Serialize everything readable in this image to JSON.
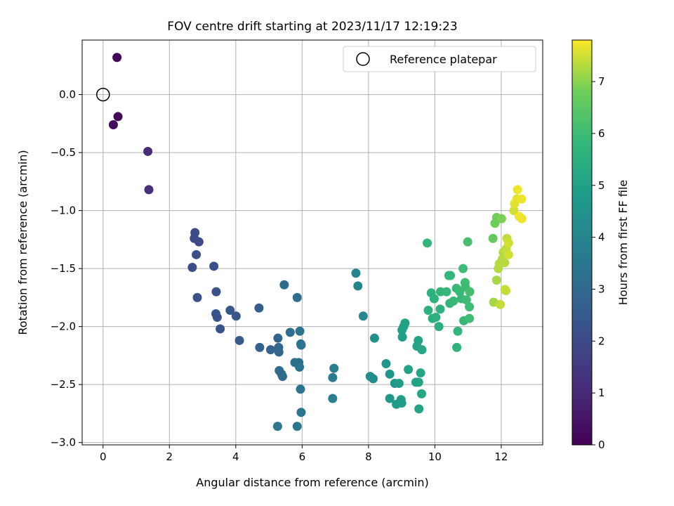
{
  "chart_data": {
    "type": "scatter",
    "title": "FOV centre drift starting at 2023/11/17 12:19:23",
    "xlabel": "Angular distance from reference (arcmin)",
    "ylabel": "Rotation from reference (arcmin)",
    "xlim": [
      -0.63,
      13.25
    ],
    "ylim": [
      -3.02,
      0.47
    ],
    "xticks": [
      0,
      2,
      4,
      6,
      8,
      10,
      12
    ],
    "xtick_labels": [
      "0",
      "2",
      "4",
      "6",
      "8",
      "10",
      "12"
    ],
    "yticks": [
      0.0,
      -0.5,
      -1.0,
      -1.5,
      -2.0,
      -2.5,
      -3.0
    ],
    "ytick_labels": [
      "0.0",
      "−0.5",
      "−1.0",
      "−1.5",
      "−2.0",
      "−2.5",
      "−3.0"
    ],
    "grid": true,
    "legend": {
      "position": "top-right",
      "entries": [
        "Reference platepar"
      ]
    },
    "reference_point": {
      "x": 0,
      "y": 0
    },
    "colorbar": {
      "label": "Hours from first FF file",
      "colormap": "viridis",
      "range": [
        0,
        7.8
      ],
      "ticks": [
        0,
        1,
        2,
        3,
        4,
        5,
        6,
        7
      ],
      "tick_labels": [
        "0",
        "1",
        "2",
        "3",
        "4",
        "5",
        "6",
        "7"
      ]
    },
    "points": [
      {
        "x": 0.42,
        "y": 0.32,
        "h": 0.1
      },
      {
        "x": 0.45,
        "y": -0.19,
        "h": 0.2
      },
      {
        "x": 0.31,
        "y": -0.26,
        "h": 0.3
      },
      {
        "x": 1.35,
        "y": -0.49,
        "h": 1.1
      },
      {
        "x": 1.38,
        "y": -0.82,
        "h": 1.2
      },
      {
        "x": 2.77,
        "y": -1.19,
        "h": 2.0
      },
      {
        "x": 2.75,
        "y": -1.24,
        "h": 2.0
      },
      {
        "x": 2.89,
        "y": -1.27,
        "h": 2.0
      },
      {
        "x": 2.81,
        "y": -1.38,
        "h": 2.1
      },
      {
        "x": 2.69,
        "y": -1.49,
        "h": 2.1
      },
      {
        "x": 3.34,
        "y": -1.48,
        "h": 2.1
      },
      {
        "x": 2.84,
        "y": -1.75,
        "h": 2.2
      },
      {
        "x": 3.41,
        "y": -1.7,
        "h": 2.2
      },
      {
        "x": 3.4,
        "y": -1.89,
        "h": 2.3
      },
      {
        "x": 3.44,
        "y": -1.92,
        "h": 2.3
      },
      {
        "x": 3.53,
        "y": -2.02,
        "h": 2.3
      },
      {
        "x": 3.83,
        "y": -1.86,
        "h": 2.4
      },
      {
        "x": 4.01,
        "y": -1.91,
        "h": 2.4
      },
      {
        "x": 4.11,
        "y": -2.12,
        "h": 2.5
      },
      {
        "x": 4.7,
        "y": -1.84,
        "h": 2.6
      },
      {
        "x": 4.72,
        "y": -2.18,
        "h": 2.7
      },
      {
        "x": 5.05,
        "y": -2.2,
        "h": 2.8
      },
      {
        "x": 5.27,
        "y": -2.1,
        "h": 2.8
      },
      {
        "x": 5.29,
        "y": -2.18,
        "h": 2.9
      },
      {
        "x": 5.3,
        "y": -2.22,
        "h": 2.9
      },
      {
        "x": 5.31,
        "y": -2.38,
        "h": 3.0
      },
      {
        "x": 5.38,
        "y": -2.41,
        "h": 3.0
      },
      {
        "x": 5.41,
        "y": -2.43,
        "h": 3.0
      },
      {
        "x": 5.46,
        "y": -1.64,
        "h": 3.1
      },
      {
        "x": 5.64,
        "y": -2.05,
        "h": 3.1
      },
      {
        "x": 5.78,
        "y": -2.31,
        "h": 3.2
      },
      {
        "x": 5.85,
        "y": -1.75,
        "h": 3.2
      },
      {
        "x": 5.9,
        "y": -2.31,
        "h": 3.2
      },
      {
        "x": 5.92,
        "y": -2.35,
        "h": 3.3
      },
      {
        "x": 5.93,
        "y": -2.04,
        "h": 3.3
      },
      {
        "x": 5.96,
        "y": -2.15,
        "h": 3.3
      },
      {
        "x": 5.97,
        "y": -2.16,
        "h": 3.3
      },
      {
        "x": 5.95,
        "y": -2.54,
        "h": 3.4
      },
      {
        "x": 5.97,
        "y": -2.74,
        "h": 3.4
      },
      {
        "x": 5.26,
        "y": -2.86,
        "h": 3.5
      },
      {
        "x": 5.85,
        "y": -2.86,
        "h": 3.5
      },
      {
        "x": 6.92,
        "y": -2.44,
        "h": 3.7
      },
      {
        "x": 6.96,
        "y": -2.36,
        "h": 3.7
      },
      {
        "x": 6.92,
        "y": -2.62,
        "h": 3.8
      },
      {
        "x": 7.62,
        "y": -1.54,
        "h": 4.0
      },
      {
        "x": 7.68,
        "y": -1.65,
        "h": 4.0
      },
      {
        "x": 7.84,
        "y": -1.91,
        "h": 4.1
      },
      {
        "x": 8.05,
        "y": -2.43,
        "h": 4.3
      },
      {
        "x": 8.14,
        "y": -2.45,
        "h": 4.3
      },
      {
        "x": 8.18,
        "y": -2.1,
        "h": 4.4
      },
      {
        "x": 8.53,
        "y": -2.32,
        "h": 4.6
      },
      {
        "x": 8.64,
        "y": -2.41,
        "h": 4.6
      },
      {
        "x": 8.64,
        "y": -2.62,
        "h": 4.7
      },
      {
        "x": 8.79,
        "y": -2.49,
        "h": 4.7
      },
      {
        "x": 8.84,
        "y": -2.67,
        "h": 4.8
      },
      {
        "x": 8.92,
        "y": -2.49,
        "h": 4.8
      },
      {
        "x": 8.98,
        "y": -2.63,
        "h": 4.8
      },
      {
        "x": 9.0,
        "y": -2.66,
        "h": 4.8
      },
      {
        "x": 9.01,
        "y": -2.03,
        "h": 4.9
      },
      {
        "x": 9.02,
        "y": -2.09,
        "h": 4.9
      },
      {
        "x": 9.06,
        "y": -2.0,
        "h": 4.9
      },
      {
        "x": 9.1,
        "y": -1.97,
        "h": 5.0
      },
      {
        "x": 9.2,
        "y": -2.37,
        "h": 5.0
      },
      {
        "x": 9.43,
        "y": -2.48,
        "h": 5.1
      },
      {
        "x": 9.46,
        "y": -2.17,
        "h": 5.1
      },
      {
        "x": 9.5,
        "y": -2.12,
        "h": 5.1
      },
      {
        "x": 9.51,
        "y": -2.48,
        "h": 5.1
      },
      {
        "x": 9.52,
        "y": -2.71,
        "h": 5.1
      },
      {
        "x": 9.57,
        "y": -2.4,
        "h": 5.2
      },
      {
        "x": 9.61,
        "y": -2.2,
        "h": 5.2
      },
      {
        "x": 9.6,
        "y": -2.58,
        "h": 5.2
      },
      {
        "x": 9.77,
        "y": -1.28,
        "h": 5.8
      },
      {
        "x": 9.8,
        "y": -1.86,
        "h": 5.6
      },
      {
        "x": 9.89,
        "y": -1.71,
        "h": 5.6
      },
      {
        "x": 9.93,
        "y": -1.93,
        "h": 5.5
      },
      {
        "x": 9.98,
        "y": -1.76,
        "h": 5.6
      },
      {
        "x": 10.03,
        "y": -1.92,
        "h": 5.6
      },
      {
        "x": 10.12,
        "y": -2.0,
        "h": 5.5
      },
      {
        "x": 10.17,
        "y": -1.7,
        "h": 5.7
      },
      {
        "x": 10.16,
        "y": -1.85,
        "h": 5.6
      },
      {
        "x": 10.35,
        "y": -1.7,
        "h": 5.8
      },
      {
        "x": 10.42,
        "y": -1.56,
        "h": 5.8
      },
      {
        "x": 10.45,
        "y": -1.8,
        "h": 5.8
      },
      {
        "x": 10.47,
        "y": -1.56,
        "h": 5.8
      },
      {
        "x": 10.56,
        "y": -1.78,
        "h": 5.9
      },
      {
        "x": 10.65,
        "y": -1.67,
        "h": 5.9
      },
      {
        "x": 10.66,
        "y": -2.18,
        "h": 5.7
      },
      {
        "x": 10.69,
        "y": -2.04,
        "h": 5.8
      },
      {
        "x": 10.75,
        "y": -1.7,
        "h": 5.9
      },
      {
        "x": 10.8,
        "y": -1.76,
        "h": 5.9
      },
      {
        "x": 10.85,
        "y": -1.5,
        "h": 6.0
      },
      {
        "x": 10.87,
        "y": -1.95,
        "h": 5.9
      },
      {
        "x": 10.91,
        "y": -1.62,
        "h": 6.0
      },
      {
        "x": 10.92,
        "y": -1.66,
        "h": 6.0
      },
      {
        "x": 10.95,
        "y": -1.77,
        "h": 6.0
      },
      {
        "x": 10.99,
        "y": -1.27,
        "h": 6.2
      },
      {
        "x": 11.04,
        "y": -1.93,
        "h": 6.0
      },
      {
        "x": 11.04,
        "y": -1.83,
        "h": 6.0
      },
      {
        "x": 11.05,
        "y": -1.7,
        "h": 6.1
      },
      {
        "x": 11.75,
        "y": -1.24,
        "h": 6.6
      },
      {
        "x": 11.77,
        "y": -1.79,
        "h": 7.2
      },
      {
        "x": 11.81,
        "y": -1.11,
        "h": 6.8
      },
      {
        "x": 11.86,
        "y": -1.06,
        "h": 6.8
      },
      {
        "x": 11.86,
        "y": -1.6,
        "h": 7.2
      },
      {
        "x": 11.91,
        "y": -1.5,
        "h": 7.3
      },
      {
        "x": 11.94,
        "y": -1.46,
        "h": 7.3
      },
      {
        "x": 11.97,
        "y": -1.81,
        "h": 7.4
      },
      {
        "x": 12.01,
        "y": -1.07,
        "h": 6.9
      },
      {
        "x": 12.03,
        "y": -1.42,
        "h": 7.3
      },
      {
        "x": 12.06,
        "y": -1.36,
        "h": 7.3
      },
      {
        "x": 12.1,
        "y": -1.45,
        "h": 7.3
      },
      {
        "x": 12.11,
        "y": -1.68,
        "h": 7.4
      },
      {
        "x": 12.14,
        "y": -1.69,
        "h": 7.4
      },
      {
        "x": 12.15,
        "y": -1.33,
        "h": 7.4
      },
      {
        "x": 12.17,
        "y": -1.24,
        "h": 7.4
      },
      {
        "x": 12.22,
        "y": -1.28,
        "h": 7.5
      },
      {
        "x": 12.22,
        "y": -1.38,
        "h": 7.5
      },
      {
        "x": 12.38,
        "y": -1.0,
        "h": 7.5
      },
      {
        "x": 12.4,
        "y": -0.94,
        "h": 7.6
      },
      {
        "x": 12.47,
        "y": -0.9,
        "h": 7.6
      },
      {
        "x": 12.49,
        "y": -0.82,
        "h": 7.7
      },
      {
        "x": 12.54,
        "y": -1.05,
        "h": 7.7
      },
      {
        "x": 12.61,
        "y": -0.9,
        "h": 7.7
      },
      {
        "x": 12.62,
        "y": -1.07,
        "h": 7.7
      }
    ]
  }
}
